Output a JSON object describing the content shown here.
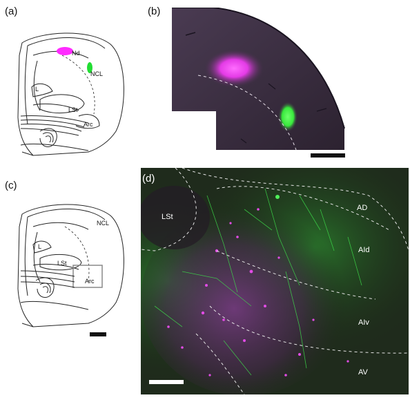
{
  "figure": {
    "panel_a": {
      "label": "(a)",
      "regions": {
        "nd": "Nd",
        "ncl": "NCL",
        "l": "L",
        "lst": "LSt",
        "arc": "Arc"
      },
      "colors": {
        "nd_injection": "#ff2bff",
        "ncl_injection": "#22dd33"
      }
    },
    "panel_b": {
      "label": "(b)",
      "colors": {
        "magenta": "#e43be6",
        "green": "#38e83c",
        "tissue": "#3d2f42"
      }
    },
    "panel_c": {
      "label": "(c)",
      "regions": {
        "ncl": "NCL",
        "l": "L",
        "lst": "LSt",
        "arc": "Arc"
      }
    },
    "panel_d": {
      "label": "(d)",
      "regions": {
        "lst": "LSt",
        "ad": "AD",
        "aid": "AId",
        "aiv": "AIv",
        "av": "AV"
      },
      "colors": {
        "green": "#2fc83a",
        "magenta": "#c43bc8"
      }
    }
  }
}
